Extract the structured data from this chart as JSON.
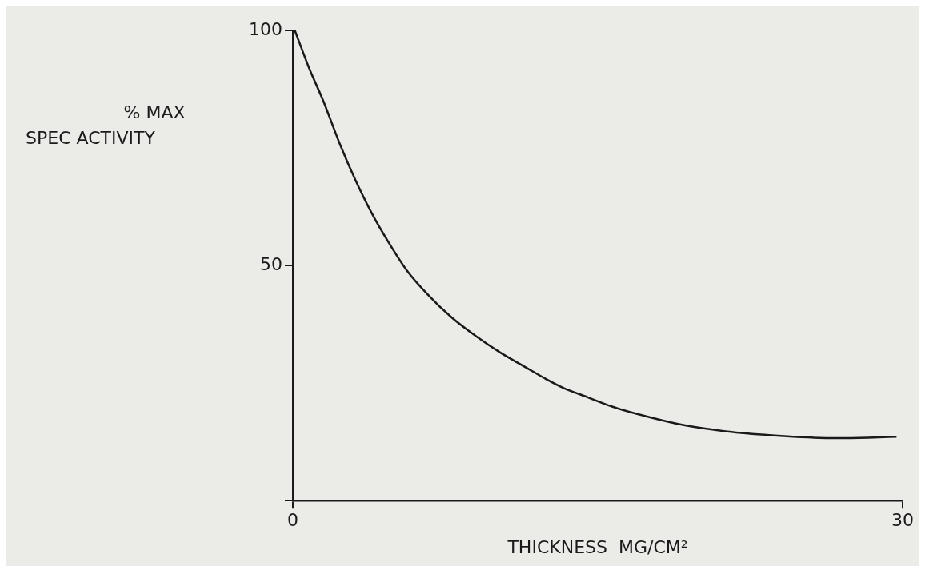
{
  "chart_data": {
    "type": "line",
    "xlabel": "THICKNESS  MG/CM²",
    "ylabel": "% MAX SPEC ACTIVITY",
    "x": [
      0.1,
      0.8,
      1.5,
      2.3,
      3.1,
      3.9,
      4.7,
      5.6,
      6.6,
      7.8,
      9,
      10.2,
      11.4,
      12.4,
      13.3,
      14.5,
      15.7,
      17.5,
      19.3,
      21.2,
      23.2,
      25,
      26.8,
      28.3,
      29.7
    ],
    "series": [
      {
        "color": "#1a1a1a",
        "values": [
          100,
          92,
          85,
          76,
          68,
          61,
          55,
          49,
          44,
          39,
          35,
          31.5,
          28.5,
          26,
          24,
          22,
          20,
          17.8,
          16,
          14.8,
          14,
          13.5,
          13.3,
          13.4,
          13.6
        ]
      }
    ],
    "xlim": [
      0,
      30
    ],
    "ylim": [
      0,
      100
    ],
    "xticks": [
      0,
      30
    ],
    "yticks": [
      {
        "value": 0,
        "label": null
      },
      50,
      100
    ],
    "grid": false,
    "legend": false,
    "marker": "none",
    "line_style": "solid"
  }
}
